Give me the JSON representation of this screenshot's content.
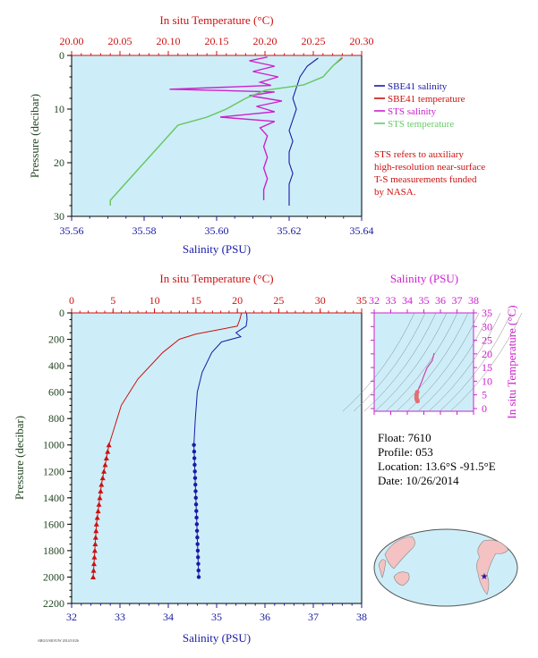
{
  "colors": {
    "plot_bg": "#cdeef8",
    "blue": "#1a1aa6",
    "red": "#cc1111",
    "magenta": "#cc22cc",
    "green": "#66cc66",
    "label_green": "#224422"
  },
  "top_chart": {
    "top_axis_title": "In situ Temperature (°C)",
    "bottom_axis_title": "Salinity (PSU)",
    "y_axis_title": "Pressure (decibar)",
    "temp_ticks": [
      "20.00",
      "20.05",
      "20.10",
      "20.15",
      "20.20",
      "20.25",
      "20.30"
    ],
    "sal_ticks": [
      "35.56",
      "35.58",
      "35.60",
      "35.62",
      "35.64"
    ],
    "p_ticks": [
      "0",
      "10",
      "20",
      "30"
    ],
    "legend": [
      {
        "label": "SBE41 salinity",
        "color": "#1a1aa6"
      },
      {
        "label": "SBE41 temperature",
        "color": "#cc1111"
      },
      {
        "label": "STS salinity",
        "color": "#cc22cc"
      },
      {
        "label": "STS temperature",
        "color": "#66cc66"
      }
    ],
    "note": [
      "STS refers to auxiliary",
      "high-resolution near-surface",
      "T-S measurements funded",
      "by NASA."
    ]
  },
  "bottom_chart": {
    "top_axis_title": "In situ Temperature (°C)",
    "bottom_axis_title": "Salinity (PSU)",
    "y_axis_title": "Pressure (decibar)",
    "temp_ticks": [
      "0",
      "5",
      "10",
      "15",
      "20",
      "25",
      "30",
      "35"
    ],
    "sal_ticks": [
      "32",
      "33",
      "34",
      "35",
      "36",
      "37",
      "38"
    ],
    "p_ticks": [
      "0",
      "200",
      "400",
      "600",
      "800",
      "1000",
      "1200",
      "1400",
      "1600",
      "1800",
      "2000",
      "2200"
    ]
  },
  "ts_chart": {
    "top_axis_title": "Salinity (PSU)",
    "right_axis_title": "In situ Temperature (°C)",
    "sal_ticks": [
      "32",
      "33",
      "34",
      "35",
      "36",
      "37",
      "38"
    ],
    "temp_ticks": [
      "0",
      "5",
      "10",
      "15",
      "20",
      "25",
      "30",
      "35"
    ]
  },
  "info": {
    "float": "Float:  7610",
    "profile": "Profile:  053",
    "location": "Location:  13.6°S  -91.5°E",
    "date": "Date:  10/26/2014"
  },
  "footer_text": "ARGO/SIO/UW 2014/10/26",
  "chart_data": [
    {
      "type": "line",
      "name_ref": "top_chart",
      "xlabel": "Salinity (PSU)",
      "x2label": "In situ Temperature (°C)",
      "ylabel": "Pressure (decibar)",
      "xlim": [
        35.56,
        35.64
      ],
      "x2lim": [
        20.0,
        20.3
      ],
      "ylim": [
        30,
        0
      ],
      "series": [
        {
          "name": "SBE41 salinity",
          "axis": "salinity",
          "color": "#1a1aa6",
          "points": [
            [
              35.628,
              0.5
            ],
            [
              35.625,
              2
            ],
            [
              35.623,
              4
            ],
            [
              35.622,
              6
            ],
            [
              35.621,
              8
            ],
            [
              35.622,
              10
            ],
            [
              35.621,
              12
            ],
            [
              35.62,
              14
            ],
            [
              35.621,
              16
            ],
            [
              35.62,
              18
            ],
            [
              35.62,
              20
            ],
            [
              35.621,
              22
            ],
            [
              35.62,
              24
            ],
            [
              35.62,
              26
            ],
            [
              35.62,
              28
            ]
          ]
        },
        {
          "name": "SBE41 temperature",
          "axis": "temperature",
          "color": "#cc1111",
          "points": [
            [
              20.28,
              0.5
            ],
            [
              20.27,
              2
            ],
            [
              20.26,
              4
            ],
            [
              20.24,
              5.5
            ],
            [
              20.2,
              6.5
            ],
            [
              20.18,
              8
            ],
            [
              20.16,
              10
            ],
            [
              20.14,
              11.5
            ],
            [
              20.11,
              13
            ],
            [
              20.1,
              15
            ],
            [
              20.09,
              17
            ],
            [
              20.08,
              19
            ],
            [
              20.07,
              21
            ],
            [
              20.06,
              23
            ],
            [
              20.05,
              25
            ],
            [
              20.04,
              27
            ],
            [
              20.04,
              28
            ]
          ]
        },
        {
          "name": "STS salinity",
          "axis": "salinity",
          "color": "#cc22cc",
          "points": [
            [
              35.614,
              0.3
            ],
            [
              35.609,
              1
            ],
            [
              35.616,
              2
            ],
            [
              35.61,
              3
            ],
            [
              35.617,
              4
            ],
            [
              35.612,
              5
            ],
            [
              35.615,
              5.6
            ],
            [
              35.587,
              6.3
            ],
            [
              35.616,
              6.8
            ],
            [
              35.609,
              7.5
            ],
            [
              35.618,
              8.5
            ],
            [
              35.611,
              9.5
            ],
            [
              35.616,
              10.5
            ],
            [
              35.601,
              11.5
            ],
            [
              35.616,
              12.3
            ],
            [
              35.612,
              13.5
            ],
            [
              35.614,
              15
            ],
            [
              35.613,
              17
            ],
            [
              35.614,
              19
            ],
            [
              35.613,
              21
            ],
            [
              35.614,
              23
            ],
            [
              35.613,
              25
            ],
            [
              35.613,
              27
            ]
          ]
        },
        {
          "name": "STS temperature",
          "axis": "temperature",
          "color": "#66cc66",
          "points": [
            [
              20.28,
              0.3
            ],
            [
              20.27,
              2
            ],
            [
              20.26,
              4
            ],
            [
              20.24,
              5.5
            ],
            [
              20.2,
              6.5
            ],
            [
              20.18,
              8
            ],
            [
              20.16,
              10
            ],
            [
              20.14,
              11.5
            ],
            [
              20.11,
              13
            ],
            [
              20.1,
              15
            ],
            [
              20.09,
              17
            ],
            [
              20.08,
              19
            ],
            [
              20.07,
              21
            ],
            [
              20.06,
              23
            ],
            [
              20.05,
              25
            ],
            [
              20.04,
              27
            ],
            [
              20.04,
              28
            ]
          ]
        }
      ]
    },
    {
      "type": "line",
      "name_ref": "bottom_chart",
      "xlabel": "Salinity (PSU)",
      "x2label": "In situ Temperature (°C)",
      "ylabel": "Pressure (decibar)",
      "xlim": [
        32,
        38
      ],
      "x2lim": [
        0,
        35
      ],
      "ylim": [
        2200,
        0
      ],
      "series": [
        {
          "name": "Temperature",
          "axis": "temperature",
          "color": "#cc1111",
          "points": [
            [
              20.5,
              0
            ],
            [
              20.3,
              50
            ],
            [
              20.0,
              100
            ],
            [
              17.5,
              130
            ],
            [
              15.0,
              160
            ],
            [
              13.0,
              200
            ],
            [
              11.0,
              300
            ],
            [
              9.5,
              400
            ],
            [
              8.0,
              500
            ],
            [
              7.0,
              600
            ],
            [
              6.0,
              700
            ],
            [
              5.5,
              800
            ],
            [
              5.0,
              900
            ],
            [
              4.5,
              1000
            ],
            [
              4.2,
              1100
            ],
            [
              3.9,
              1200
            ],
            [
              3.6,
              1300
            ],
            [
              3.4,
              1400
            ],
            [
              3.2,
              1500
            ],
            [
              3.0,
              1600
            ],
            [
              2.9,
              1700
            ],
            [
              2.8,
              1800
            ],
            [
              2.7,
              1900
            ],
            [
              2.6,
              2000
            ]
          ]
        },
        {
          "name": "Salinity",
          "axis": "salinity",
          "color": "#1a1aa6",
          "points": [
            [
              35.62,
              0
            ],
            [
              35.63,
              50
            ],
            [
              35.61,
              100
            ],
            [
              35.4,
              150
            ],
            [
              35.5,
              180
            ],
            [
              35.1,
              220
            ],
            [
              34.9,
              300
            ],
            [
              34.7,
              450
            ],
            [
              34.6,
              600
            ],
            [
              34.56,
              800
            ],
            [
              34.53,
              1000
            ],
            [
              34.54,
              1100
            ],
            [
              34.55,
              1200
            ],
            [
              34.56,
              1300
            ],
            [
              34.57,
              1400
            ],
            [
              34.58,
              1500
            ],
            [
              34.59,
              1600
            ],
            [
              34.6,
              1700
            ],
            [
              34.61,
              1800
            ],
            [
              34.62,
              1900
            ],
            [
              34.63,
              2000
            ]
          ]
        }
      ],
      "marker_pressures": [
        1000,
        1050,
        1100,
        1150,
        1200,
        1250,
        1300,
        1350,
        1400,
        1450,
        1500,
        1550,
        1600,
        1650,
        1700,
        1750,
        1800,
        1850,
        1900,
        1950,
        2000
      ]
    },
    {
      "type": "scatter",
      "name_ref": "ts_chart",
      "xlabel": "Salinity (PSU)",
      "ylabel": "In situ Temperature (°C)",
      "xlim": [
        32,
        38
      ],
      "ylim": [
        -1,
        35
      ],
      "series": [
        {
          "name": "T-S",
          "color": "#cc44aa",
          "points": [
            [
              35.62,
              20.3
            ],
            [
              35.5,
              17.5
            ],
            [
              35.2,
              15
            ],
            [
              35.0,
              12
            ],
            [
              34.85,
              9.5
            ],
            [
              34.7,
              7.5
            ],
            [
              34.6,
              6
            ],
            [
              34.56,
              5
            ],
            [
              34.55,
              4.2
            ],
            [
              34.56,
              3.6
            ],
            [
              34.58,
              3.2
            ],
            [
              34.6,
              2.9
            ],
            [
              34.62,
              2.7
            ]
          ]
        }
      ]
    }
  ]
}
